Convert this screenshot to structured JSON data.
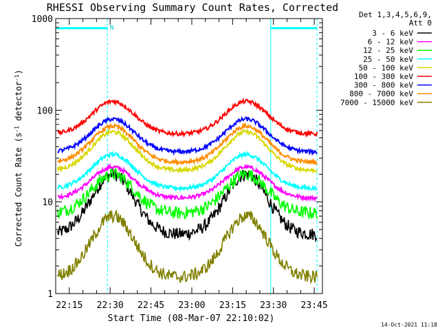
{
  "chart_data": {
    "type": "line",
    "title": "RHESSI Observing Summary Count Rates, Corrected",
    "xlabel": "Start Time (08-Mar-07 22:10:02)",
    "ylabel_main": "Corrected Count Rate (s",
    "ylabel_sup1": "-1",
    "ylabel_mid": " detector",
    "ylabel_sup2": "-1",
    "ylabel_end": ")",
    "yscale": "log",
    "ylim": [
      1,
      1000
    ],
    "xlim": [
      "22:10",
      "23:48"
    ],
    "x_ticks": [
      "22:15",
      "22:30",
      "22:45",
      "23:00",
      "23:15",
      "23:30",
      "23:45"
    ],
    "y_ticks": [
      "1",
      "10",
      "100",
      "1000"
    ],
    "legend_header": [
      "Det 1,3,4,5,6,9,",
      "Att 0"
    ],
    "timestamp": "14-Oct-2021 11:18",
    "night_marker": "N",
    "markers": {
      "solid_lines": [
        "22:10",
        "23:29"
      ],
      "dashed_lines": [
        "22:29",
        "23:46"
      ],
      "top_bars": [
        [
          "22:10",
          "22:29"
        ],
        [
          "23:29",
          "23:46"
        ]
      ]
    },
    "peaks": [
      "22:31",
      "23:20"
    ],
    "series": [
      {
        "name": "3 - 6 keV",
        "color": "#000000",
        "low": 4.4,
        "peak": 20
      },
      {
        "name": "6 - 12 keV",
        "color": "#ff00ff",
        "low": 11,
        "peak": 24
      },
      {
        "name": "12 - 25 keV",
        "color": "#00ff00",
        "low": 7.5,
        "peak": 20
      },
      {
        "name": "25 - 50 keV",
        "color": "#00ffff",
        "low": 14,
        "peak": 33
      },
      {
        "name": "50 - 100 keV",
        "color": "#d8d800",
        "low": 22,
        "peak": 58
      },
      {
        "name": "100 - 300 keV",
        "color": "#ff0000",
        "low": 55,
        "peak": 125
      },
      {
        "name": "300 - 800 keV",
        "color": "#0000ff",
        "low": 35,
        "peak": 80
      },
      {
        "name": "800 - 7000 keV",
        "color": "#ff8c00",
        "low": 27,
        "peak": 67
      },
      {
        "name": "7000 - 15000 keV",
        "color": "#808000",
        "low": 1.5,
        "peak": 7
      }
    ]
  }
}
